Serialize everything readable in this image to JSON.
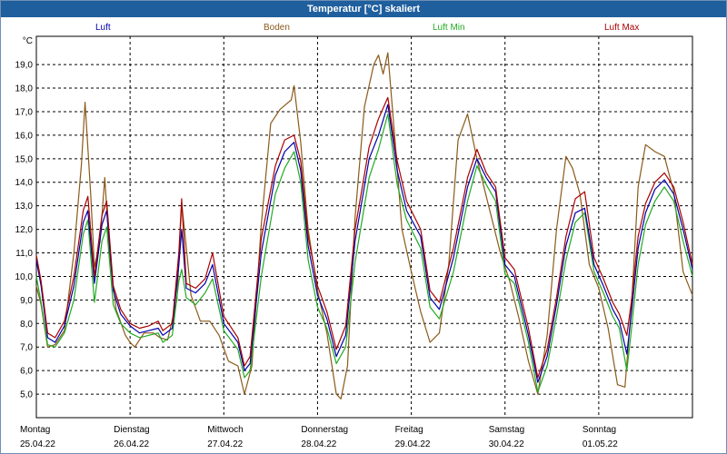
{
  "chart_data": {
    "type": "line",
    "title": "Temperatur [°C] skaliert",
    "ylabel": "°C",
    "ylim": [
      4.0,
      20.2
    ],
    "yticks": [
      "5,0",
      "6,0",
      "7,0",
      "8,0",
      "9,0",
      "10,0",
      "11,0",
      "12,0",
      "13,0",
      "14,0",
      "15,0",
      "16,0",
      "17,0",
      "18,0",
      "19,0"
    ],
    "xlim": [
      0,
      7
    ],
    "day_labels": [
      {
        "day": "Montag",
        "date": "25.04.22"
      },
      {
        "day": "Dienstag",
        "date": "26.04.22"
      },
      {
        "day": "Mittwoch",
        "date": "27.04.22"
      },
      {
        "day": "Donnerstag",
        "date": "28.04.22"
      },
      {
        "day": "Freitag",
        "date": "29.04.22"
      },
      {
        "day": "Samstag",
        "date": "30.04.22"
      },
      {
        "day": "Sonntag",
        "date": "01.05.22"
      }
    ],
    "grid": true,
    "series": [
      {
        "name": "Luft",
        "color": "#0000aa",
        "points": [
          [
            0,
            10.7
          ],
          [
            0.05,
            9.6
          ],
          [
            0.12,
            7.4
          ],
          [
            0.2,
            7.2
          ],
          [
            0.3,
            7.9
          ],
          [
            0.4,
            9.6
          ],
          [
            0.5,
            12.3
          ],
          [
            0.55,
            12.8
          ],
          [
            0.62,
            9.7
          ],
          [
            0.7,
            12.2
          ],
          [
            0.75,
            12.8
          ],
          [
            0.82,
            9.4
          ],
          [
            0.9,
            8.4
          ],
          [
            1.0,
            7.9
          ],
          [
            1.1,
            7.6
          ],
          [
            1.2,
            7.7
          ],
          [
            1.3,
            7.8
          ],
          [
            1.35,
            7.5
          ],
          [
            1.45,
            7.8
          ],
          [
            1.52,
            10.5
          ],
          [
            1.55,
            12.0
          ],
          [
            1.6,
            9.5
          ],
          [
            1.7,
            9.3
          ],
          [
            1.8,
            9.7
          ],
          [
            1.88,
            10.5
          ],
          [
            2.0,
            8.0
          ],
          [
            2.15,
            7.2
          ],
          [
            2.22,
            6.0
          ],
          [
            2.28,
            6.3
          ],
          [
            2.4,
            11.0
          ],
          [
            2.55,
            14.3
          ],
          [
            2.65,
            15.3
          ],
          [
            2.75,
            15.7
          ],
          [
            2.82,
            14.5
          ],
          [
            2.9,
            11.3
          ],
          [
            3.0,
            9.2
          ],
          [
            3.1,
            8.2
          ],
          [
            3.2,
            6.6
          ],
          [
            3.3,
            7.5
          ],
          [
            3.4,
            11.5
          ],
          [
            3.55,
            15.0
          ],
          [
            3.65,
            16.0
          ],
          [
            3.75,
            17.3
          ],
          [
            3.85,
            14.5
          ],
          [
            3.95,
            12.8
          ],
          [
            4.1,
            11.7
          ],
          [
            4.2,
            9.1
          ],
          [
            4.3,
            8.6
          ],
          [
            4.45,
            10.8
          ],
          [
            4.6,
            13.8
          ],
          [
            4.7,
            15.0
          ],
          [
            4.8,
            14.2
          ],
          [
            4.9,
            13.6
          ],
          [
            5.0,
            10.5
          ],
          [
            5.1,
            10.0
          ],
          [
            5.25,
            7.5
          ],
          [
            5.35,
            5.5
          ],
          [
            5.45,
            6.6
          ],
          [
            5.55,
            8.8
          ],
          [
            5.65,
            11.3
          ],
          [
            5.75,
            12.7
          ],
          [
            5.85,
            12.9
          ],
          [
            5.95,
            10.5
          ],
          [
            6.05,
            9.6
          ],
          [
            6.15,
            8.6
          ],
          [
            6.22,
            8.1
          ],
          [
            6.3,
            6.7
          ],
          [
            6.35,
            8.5
          ],
          [
            6.42,
            11.2
          ],
          [
            6.5,
            12.7
          ],
          [
            6.6,
            13.7
          ],
          [
            6.7,
            14.1
          ],
          [
            6.8,
            13.5
          ],
          [
            6.9,
            12.0
          ],
          [
            7.0,
            10.3
          ]
        ]
      },
      {
        "name": "Boden",
        "color": "#8b5a1a",
        "points": [
          [
            0,
            9.6
          ],
          [
            0.05,
            8.8
          ],
          [
            0.12,
            7.0
          ],
          [
            0.2,
            7.1
          ],
          [
            0.3,
            7.7
          ],
          [
            0.4,
            11.0
          ],
          [
            0.48,
            14.7
          ],
          [
            0.52,
            17.4
          ],
          [
            0.58,
            13.5
          ],
          [
            0.62,
            10.4
          ],
          [
            0.68,
            11.5
          ],
          [
            0.73,
            14.2
          ],
          [
            0.78,
            11.0
          ],
          [
            0.85,
            8.6
          ],
          [
            0.95,
            7.5
          ],
          [
            1.0,
            7.2
          ],
          [
            1.05,
            7.0
          ],
          [
            1.15,
            7.6
          ],
          [
            1.25,
            7.6
          ],
          [
            1.32,
            7.4
          ],
          [
            1.4,
            7.3
          ],
          [
            1.5,
            9.0
          ],
          [
            1.55,
            13.1
          ],
          [
            1.58,
            12.0
          ],
          [
            1.65,
            9.2
          ],
          [
            1.75,
            8.1
          ],
          [
            1.85,
            8.1
          ],
          [
            1.95,
            7.5
          ],
          [
            2.05,
            6.4
          ],
          [
            2.15,
            6.2
          ],
          [
            2.22,
            5.0
          ],
          [
            2.3,
            6.2
          ],
          [
            2.4,
            12.2
          ],
          [
            2.5,
            16.5
          ],
          [
            2.6,
            17.1
          ],
          [
            2.72,
            17.5
          ],
          [
            2.75,
            18.1
          ],
          [
            2.82,
            15.7
          ],
          [
            2.9,
            12.0
          ],
          [
            3.0,
            9.4
          ],
          [
            3.1,
            7.6
          ],
          [
            3.2,
            5.0
          ],
          [
            3.25,
            4.8
          ],
          [
            3.32,
            6.2
          ],
          [
            3.4,
            12.5
          ],
          [
            3.5,
            17.2
          ],
          [
            3.6,
            19.0
          ],
          [
            3.65,
            19.4
          ],
          [
            3.7,
            18.6
          ],
          [
            3.75,
            19.5
          ],
          [
            3.82,
            16.1
          ],
          [
            3.9,
            12.0
          ],
          [
            4.0,
            10.2
          ],
          [
            4.1,
            8.5
          ],
          [
            4.2,
            7.2
          ],
          [
            4.3,
            7.6
          ],
          [
            4.4,
            10.5
          ],
          [
            4.5,
            15.8
          ],
          [
            4.6,
            16.9
          ],
          [
            4.7,
            15.0
          ],
          [
            4.8,
            13.4
          ],
          [
            4.95,
            11.0
          ],
          [
            5.05,
            9.8
          ],
          [
            5.15,
            8.2
          ],
          [
            5.25,
            6.4
          ],
          [
            5.35,
            5.0
          ],
          [
            5.45,
            7.5
          ],
          [
            5.55,
            12.0
          ],
          [
            5.65,
            15.1
          ],
          [
            5.72,
            14.6
          ],
          [
            5.8,
            13.5
          ],
          [
            5.9,
            10.5
          ],
          [
            6.0,
            9.5
          ],
          [
            6.1,
            7.8
          ],
          [
            6.2,
            5.4
          ],
          [
            6.28,
            5.3
          ],
          [
            6.35,
            8.8
          ],
          [
            6.42,
            13.8
          ],
          [
            6.5,
            15.6
          ],
          [
            6.6,
            15.3
          ],
          [
            6.7,
            15.1
          ],
          [
            6.8,
            13.6
          ],
          [
            6.9,
            10.2
          ],
          [
            7.0,
            9.2
          ]
        ]
      },
      {
        "name": "Luft Min",
        "color": "#22aa22",
        "points": [
          [
            0,
            10.0
          ],
          [
            0.05,
            8.9
          ],
          [
            0.12,
            7.1
          ],
          [
            0.2,
            7.0
          ],
          [
            0.3,
            7.6
          ],
          [
            0.4,
            9.0
          ],
          [
            0.5,
            11.8
          ],
          [
            0.55,
            12.4
          ],
          [
            0.62,
            8.9
          ],
          [
            0.7,
            11.5
          ],
          [
            0.75,
            12.1
          ],
          [
            0.82,
            8.8
          ],
          [
            0.9,
            8.0
          ],
          [
            1.0,
            7.6
          ],
          [
            1.1,
            7.4
          ],
          [
            1.2,
            7.5
          ],
          [
            1.3,
            7.6
          ],
          [
            1.35,
            7.2
          ],
          [
            1.45,
            7.5
          ],
          [
            1.52,
            9.8
          ],
          [
            1.55,
            10.3
          ],
          [
            1.6,
            9.1
          ],
          [
            1.7,
            8.8
          ],
          [
            1.8,
            9.3
          ],
          [
            1.88,
            9.9
          ],
          [
            2.0,
            7.7
          ],
          [
            2.15,
            6.9
          ],
          [
            2.22,
            5.7
          ],
          [
            2.28,
            6.0
          ],
          [
            2.4,
            10.0
          ],
          [
            2.55,
            13.5
          ],
          [
            2.65,
            14.6
          ],
          [
            2.75,
            15.3
          ],
          [
            2.82,
            14.0
          ],
          [
            2.9,
            10.7
          ],
          [
            3.0,
            8.7
          ],
          [
            3.1,
            7.8
          ],
          [
            3.2,
            6.3
          ],
          [
            3.3,
            7.0
          ],
          [
            3.4,
            10.6
          ],
          [
            3.55,
            14.2
          ],
          [
            3.65,
            15.4
          ],
          [
            3.75,
            16.9
          ],
          [
            3.85,
            13.9
          ],
          [
            3.95,
            12.4
          ],
          [
            4.1,
            11.2
          ],
          [
            4.2,
            8.7
          ],
          [
            4.3,
            8.2
          ],
          [
            4.45,
            10.2
          ],
          [
            4.6,
            13.2
          ],
          [
            4.7,
            14.7
          ],
          [
            4.8,
            13.9
          ],
          [
            4.9,
            13.2
          ],
          [
            5.0,
            10.1
          ],
          [
            5.1,
            9.7
          ],
          [
            5.25,
            7.2
          ],
          [
            5.35,
            5.1
          ],
          [
            5.45,
            6.2
          ],
          [
            5.55,
            8.3
          ],
          [
            5.65,
            10.7
          ],
          [
            5.75,
            12.3
          ],
          [
            5.85,
            12.7
          ],
          [
            5.95,
            10.2
          ],
          [
            6.05,
            9.3
          ],
          [
            6.15,
            8.3
          ],
          [
            6.22,
            7.8
          ],
          [
            6.3,
            6.0
          ],
          [
            6.35,
            7.8
          ],
          [
            6.42,
            10.5
          ],
          [
            6.5,
            12.2
          ],
          [
            6.6,
            13.2
          ],
          [
            6.7,
            13.8
          ],
          [
            6.8,
            13.2
          ],
          [
            6.9,
            11.5
          ],
          [
            7.0,
            10.0
          ]
        ]
      },
      {
        "name": "Luft Max",
        "color": "#aa0000",
        "points": [
          [
            0,
            10.9
          ],
          [
            0.05,
            9.8
          ],
          [
            0.12,
            7.6
          ],
          [
            0.2,
            7.4
          ],
          [
            0.3,
            8.1
          ],
          [
            0.4,
            10.0
          ],
          [
            0.5,
            12.8
          ],
          [
            0.55,
            13.4
          ],
          [
            0.62,
            10.0
          ],
          [
            0.7,
            12.6
          ],
          [
            0.75,
            13.2
          ],
          [
            0.82,
            9.6
          ],
          [
            0.9,
            8.6
          ],
          [
            1.0,
            8.0
          ],
          [
            1.1,
            7.8
          ],
          [
            1.2,
            7.9
          ],
          [
            1.3,
            8.1
          ],
          [
            1.35,
            7.7
          ],
          [
            1.45,
            8.0
          ],
          [
            1.52,
            11.0
          ],
          [
            1.55,
            13.3
          ],
          [
            1.6,
            9.7
          ],
          [
            1.7,
            9.5
          ],
          [
            1.8,
            9.9
          ],
          [
            1.88,
            11.0
          ],
          [
            2.0,
            8.3
          ],
          [
            2.15,
            7.4
          ],
          [
            2.22,
            6.2
          ],
          [
            2.28,
            6.6
          ],
          [
            2.4,
            11.6
          ],
          [
            2.55,
            14.7
          ],
          [
            2.65,
            15.8
          ],
          [
            2.75,
            16.0
          ],
          [
            2.82,
            14.9
          ],
          [
            2.9,
            11.7
          ],
          [
            3.0,
            9.6
          ],
          [
            3.1,
            8.5
          ],
          [
            3.2,
            6.9
          ],
          [
            3.3,
            7.9
          ],
          [
            3.4,
            12.0
          ],
          [
            3.55,
            15.5
          ],
          [
            3.65,
            16.7
          ],
          [
            3.75,
            17.6
          ],
          [
            3.85,
            14.9
          ],
          [
            3.95,
            13.2
          ],
          [
            4.1,
            12.0
          ],
          [
            4.2,
            9.4
          ],
          [
            4.3,
            8.9
          ],
          [
            4.45,
            11.2
          ],
          [
            4.6,
            14.2
          ],
          [
            4.7,
            15.4
          ],
          [
            4.8,
            14.4
          ],
          [
            4.9,
            13.8
          ],
          [
            5.0,
            10.8
          ],
          [
            5.1,
            10.3
          ],
          [
            5.25,
            7.8
          ],
          [
            5.35,
            5.7
          ],
          [
            5.45,
            6.9
          ],
          [
            5.55,
            9.1
          ],
          [
            5.65,
            11.7
          ],
          [
            5.75,
            13.3
          ],
          [
            5.85,
            13.6
          ],
          [
            5.95,
            10.8
          ],
          [
            6.05,
            9.9
          ],
          [
            6.15,
            8.9
          ],
          [
            6.22,
            8.4
          ],
          [
            6.3,
            7.5
          ],
          [
            6.35,
            9.0
          ],
          [
            6.42,
            11.7
          ],
          [
            6.5,
            13.1
          ],
          [
            6.6,
            14.0
          ],
          [
            6.7,
            14.4
          ],
          [
            6.8,
            13.8
          ],
          [
            6.9,
            12.3
          ],
          [
            7.0,
            10.5
          ]
        ]
      }
    ]
  }
}
